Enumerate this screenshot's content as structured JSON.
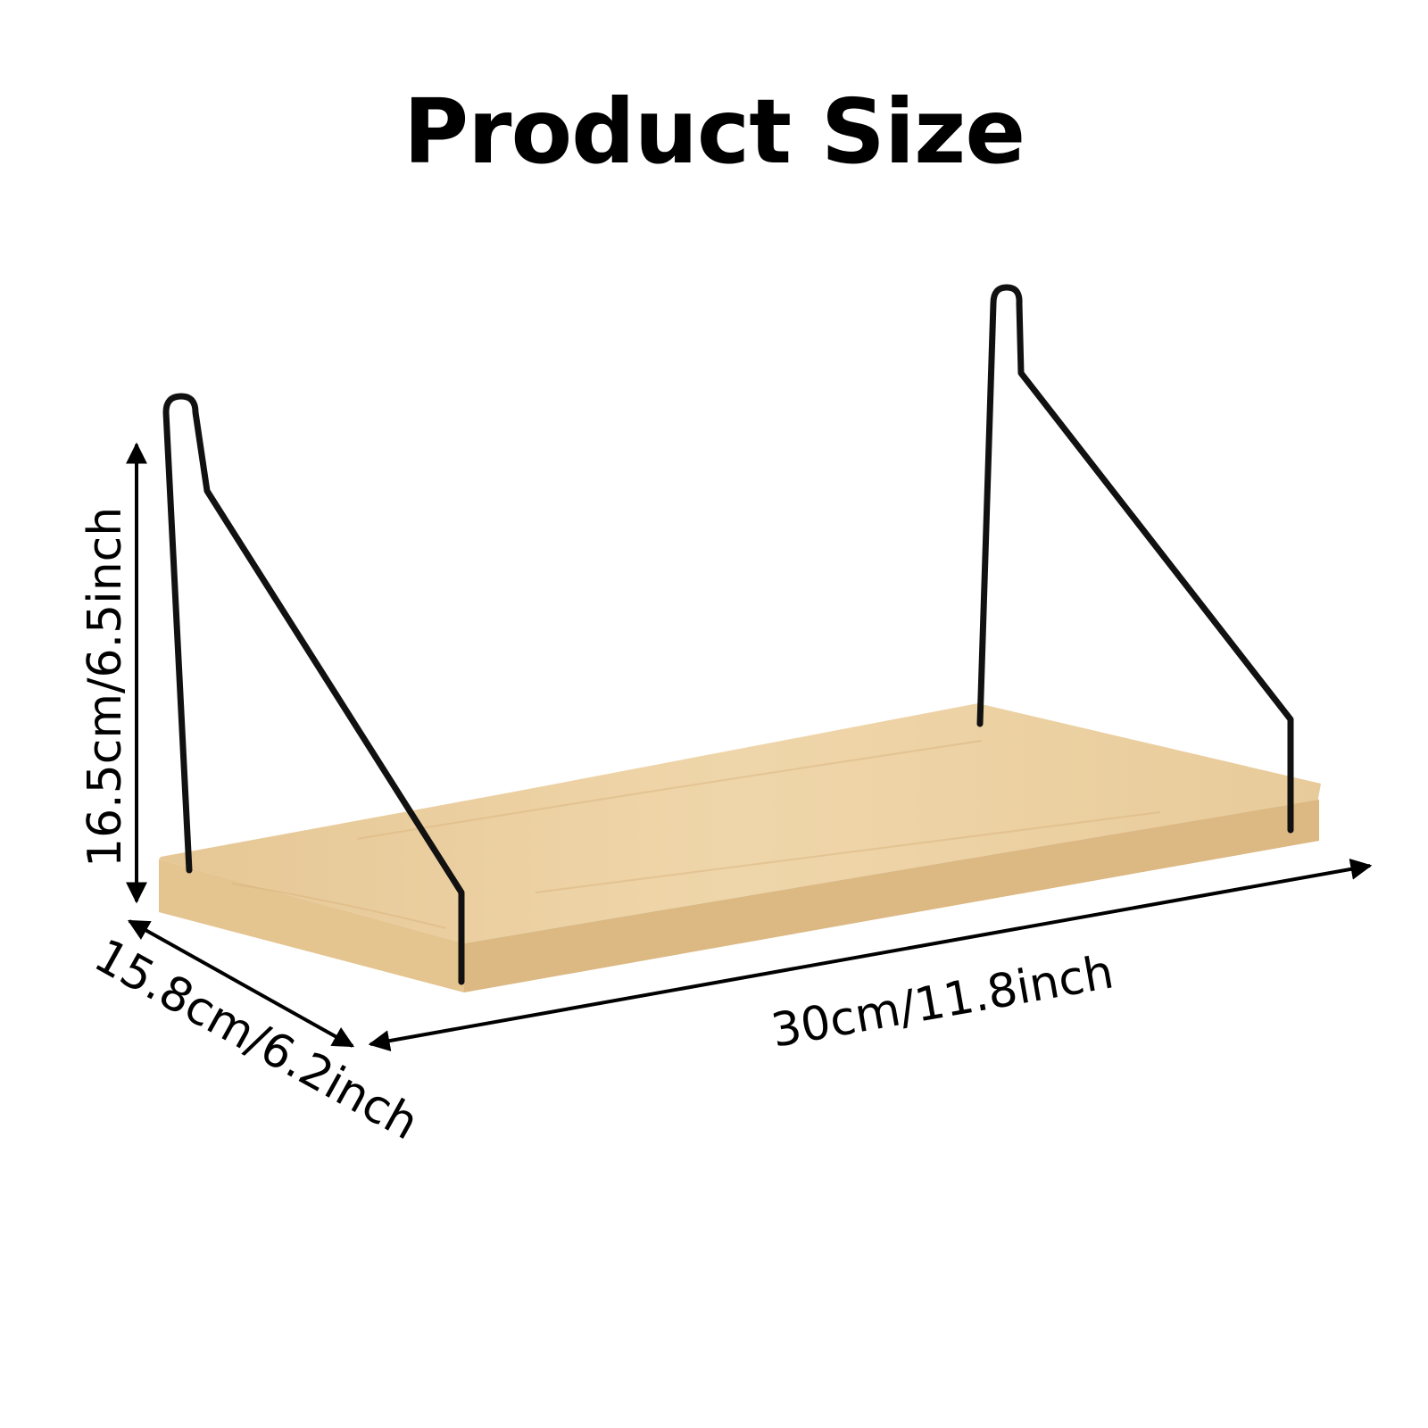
{
  "title": "Product Size",
  "dimensions": {
    "height_label": "16.5cm/6.5inch",
    "depth_label": "15.8cm/6.2inch",
    "width_label": "30cm/11.8inch"
  },
  "colors": {
    "wood_top": "#ecd2a5",
    "wood_front": "#e2c08d",
    "wood_edge": "#d8b47c",
    "wire": "#111111",
    "arrow": "#000000"
  }
}
